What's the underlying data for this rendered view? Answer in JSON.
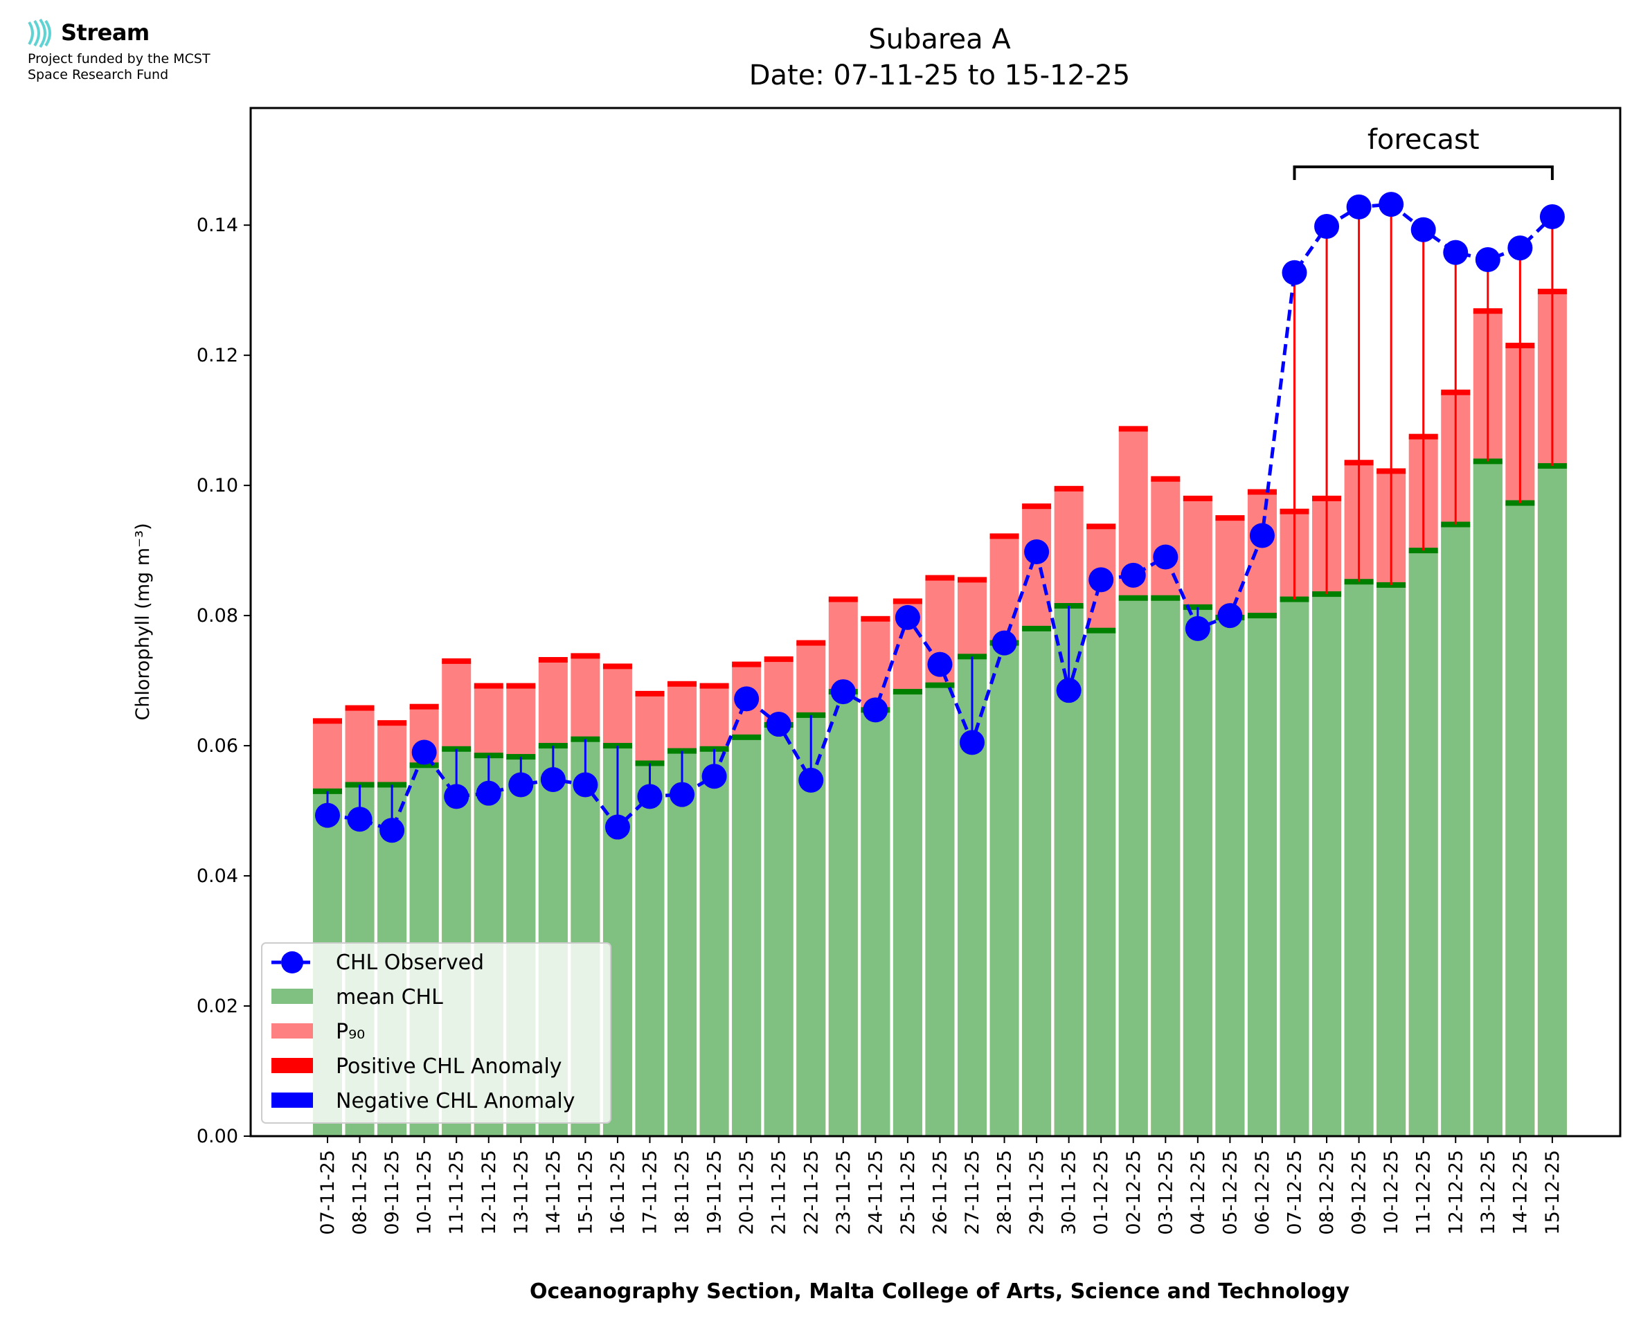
{
  "logo": {
    "name": "Stream",
    "funding_line1": "Project funded by the MCST",
    "funding_line2": "Space Research Fund",
    "color": "#5fd3d3"
  },
  "chart_data": {
    "type": "bar",
    "title": "Subarea A",
    "subtitle": "Date: 07-11-25 to 15-12-25",
    "xlabel": "Oceanography Section, Malta College of Arts, Science and Technology",
    "ylabel": "Chlorophyll (mg m⁻³)",
    "ylim": [
      0,
      0.158
    ],
    "yticks": [
      "0.00",
      "0.02",
      "0.04",
      "0.06",
      "0.08",
      "0.10",
      "0.12",
      "0.14"
    ],
    "grid": false,
    "legend_position": "lower-left",
    "annotation": "forecast",
    "forecast_range": [
      "07-12-25",
      "15-12-25"
    ],
    "categories": [
      "07-11-25",
      "08-11-25",
      "09-11-25",
      "10-11-25",
      "11-11-25",
      "12-11-25",
      "13-11-25",
      "14-11-25",
      "15-11-25",
      "16-11-25",
      "17-11-25",
      "18-11-25",
      "19-11-25",
      "20-11-25",
      "21-11-25",
      "22-11-25",
      "23-11-25",
      "24-11-25",
      "25-11-25",
      "26-11-25",
      "27-11-25",
      "28-11-25",
      "29-11-25",
      "30-11-25",
      "01-12-25",
      "02-12-25",
      "03-12-25",
      "04-12-25",
      "05-12-25",
      "06-12-25",
      "07-12-25",
      "08-12-25",
      "09-12-25",
      "10-12-25",
      "11-12-25",
      "12-12-25",
      "13-12-25",
      "14-12-25",
      "15-12-25"
    ],
    "series": [
      {
        "name": "mean CHL",
        "type": "bar",
        "color": "#80c080",
        "values": [
          0.053,
          0.054,
          0.054,
          0.057,
          0.0595,
          0.0585,
          0.0583,
          0.06,
          0.061,
          0.06,
          0.0573,
          0.0592,
          0.0595,
          0.0613,
          0.0632,
          0.0647,
          0.0683,
          0.0655,
          0.0683,
          0.0693,
          0.0737,
          0.0758,
          0.078,
          0.0815,
          0.0777,
          0.0827,
          0.0827,
          0.0813,
          0.0797,
          0.08,
          0.0825,
          0.0833,
          0.0852,
          0.0847,
          0.09,
          0.094,
          0.1037,
          0.0973,
          0.103
        ]
      },
      {
        "name": "P₉₀",
        "type": "bar",
        "color": "#ff8080",
        "values": [
          0.0638,
          0.0658,
          0.0635,
          0.066,
          0.073,
          0.0692,
          0.0692,
          0.0732,
          0.0738,
          0.0722,
          0.068,
          0.0695,
          0.0692,
          0.0725,
          0.0733,
          0.0758,
          0.0825,
          0.0795,
          0.0822,
          0.0858,
          0.0855,
          0.0922,
          0.0968,
          0.0995,
          0.0937,
          0.1087,
          0.101,
          0.098,
          0.095,
          0.099,
          0.096,
          0.098,
          0.1035,
          0.1022,
          0.1075,
          0.1143,
          0.1268,
          0.1215,
          0.1298
        ]
      },
      {
        "name": "CHL Observed",
        "type": "line",
        "color": "#0000ff",
        "values": [
          0.0493,
          0.0487,
          0.047,
          0.059,
          0.0522,
          0.0527,
          0.054,
          0.0548,
          0.054,
          0.0475,
          0.0522,
          0.0525,
          0.0553,
          0.0672,
          0.0633,
          0.0547,
          0.0683,
          0.0655,
          0.0797,
          0.0725,
          0.0605,
          0.0758,
          0.0898,
          0.0685,
          0.0855,
          0.0862,
          0.089,
          0.078,
          0.08,
          0.0923,
          0.1327,
          0.1398,
          0.1428,
          0.1432,
          0.1393,
          0.1358,
          0.1347,
          0.1365,
          0.1413
        ]
      }
    ],
    "legend": [
      "CHL Observed",
      "mean CHL",
      "P₉₀",
      "Positive CHL Anomaly",
      "Negative CHL Anomaly"
    ],
    "colors": {
      "positive_anomaly": "#ff0000",
      "negative_anomaly": "#0000ff",
      "mean_cap": "#008000"
    }
  }
}
